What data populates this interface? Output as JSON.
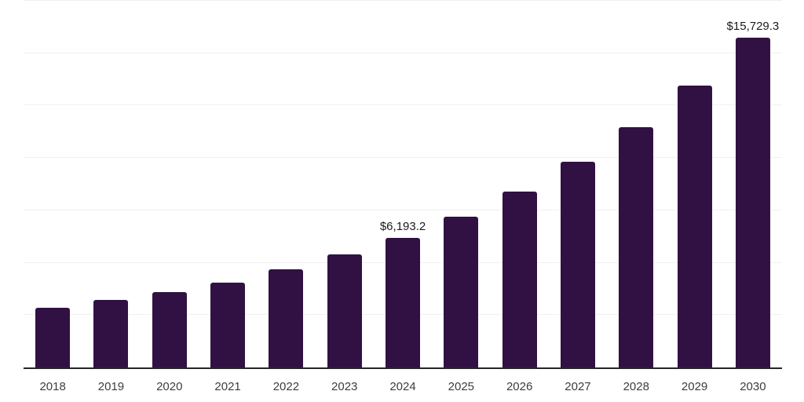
{
  "chart_data": {
    "type": "bar",
    "title": "",
    "xlabel": "",
    "ylabel": "",
    "categories": [
      "2018",
      "2019",
      "2020",
      "2021",
      "2022",
      "2023",
      "2024",
      "2025",
      "2026",
      "2027",
      "2028",
      "2029",
      "2030"
    ],
    "values": [
      2850,
      3240,
      3610,
      4060,
      4700,
      5410,
      6193.2,
      7210,
      8400,
      9830,
      11470,
      13460,
      15729.3
    ],
    "data_labels": {
      "2024": "$6,193.2",
      "2030": "$15,729.3"
    },
    "ylim": [
      0,
      17500
    ],
    "gridline_interval": 2500,
    "grid": "horizontal-only",
    "legend_position": "none",
    "yaxis_tick_labels_visible": false,
    "colors": {
      "bar": "#311144",
      "gridline": "#f0f0f0",
      "axis_line": "#262626",
      "tick_label": "#3d3d3d",
      "data_label": "#1a1a1a",
      "background": "#ffffff"
    }
  }
}
